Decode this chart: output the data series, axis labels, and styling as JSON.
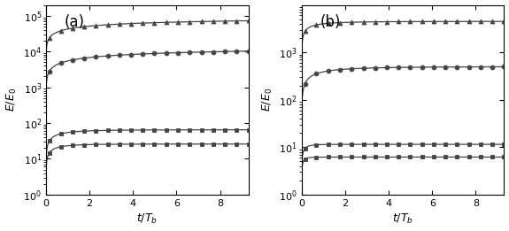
{
  "panel_a_label": "(a)",
  "panel_b_label": "(b)",
  "xlabel": "$t/T_b$",
  "ylabel": "$E/E_0$",
  "xlim": [
    0,
    9.3
  ],
  "xticks": [
    0,
    2,
    4,
    6,
    8
  ],
  "panel_a_ylim": [
    1.0,
    200000.0
  ],
  "panel_b_ylim": [
    1.0,
    10000.0
  ],
  "panel_a_yticks": [
    1.0,
    10.0,
    100.0,
    1000.0,
    10000.0,
    100000.0
  ],
  "panel_b_yticks": [
    1.0,
    10.0,
    100.0,
    1000.0
  ],
  "color": "#444444",
  "n_markers": 18,
  "label_fontsize": 9,
  "tick_fontsize": 8,
  "panel_label_fontsize": 12,
  "linewidth": 0.9,
  "markersize": 3.5,
  "figsize": [
    5.75,
    2.61
  ],
  "dpi": 100,
  "curves_a": [
    {
      "marker": "^",
      "A": 99999,
      "k": 0.55,
      "p": 0.38
    },
    {
      "marker": "o",
      "A": 14999,
      "k": 0.45,
      "p": 0.42
    },
    {
      "marker": "s",
      "A": 64,
      "k": 1.8,
      "p": 0.55
    },
    {
      "marker": "s",
      "A": 25,
      "k": 2.2,
      "p": 0.55
    }
  ],
  "curves_b": [
    {
      "marker": "^",
      "A": 4499,
      "k": 2.2,
      "p": 0.45
    },
    {
      "marker": "o",
      "A": 499,
      "k": 1.5,
      "p": 0.52
    },
    {
      "marker": "s",
      "A": 10.5,
      "k": 4.5,
      "p": 0.55
    },
    {
      "marker": "s",
      "A": 5.2,
      "k": 6.0,
      "p": 0.55
    }
  ]
}
